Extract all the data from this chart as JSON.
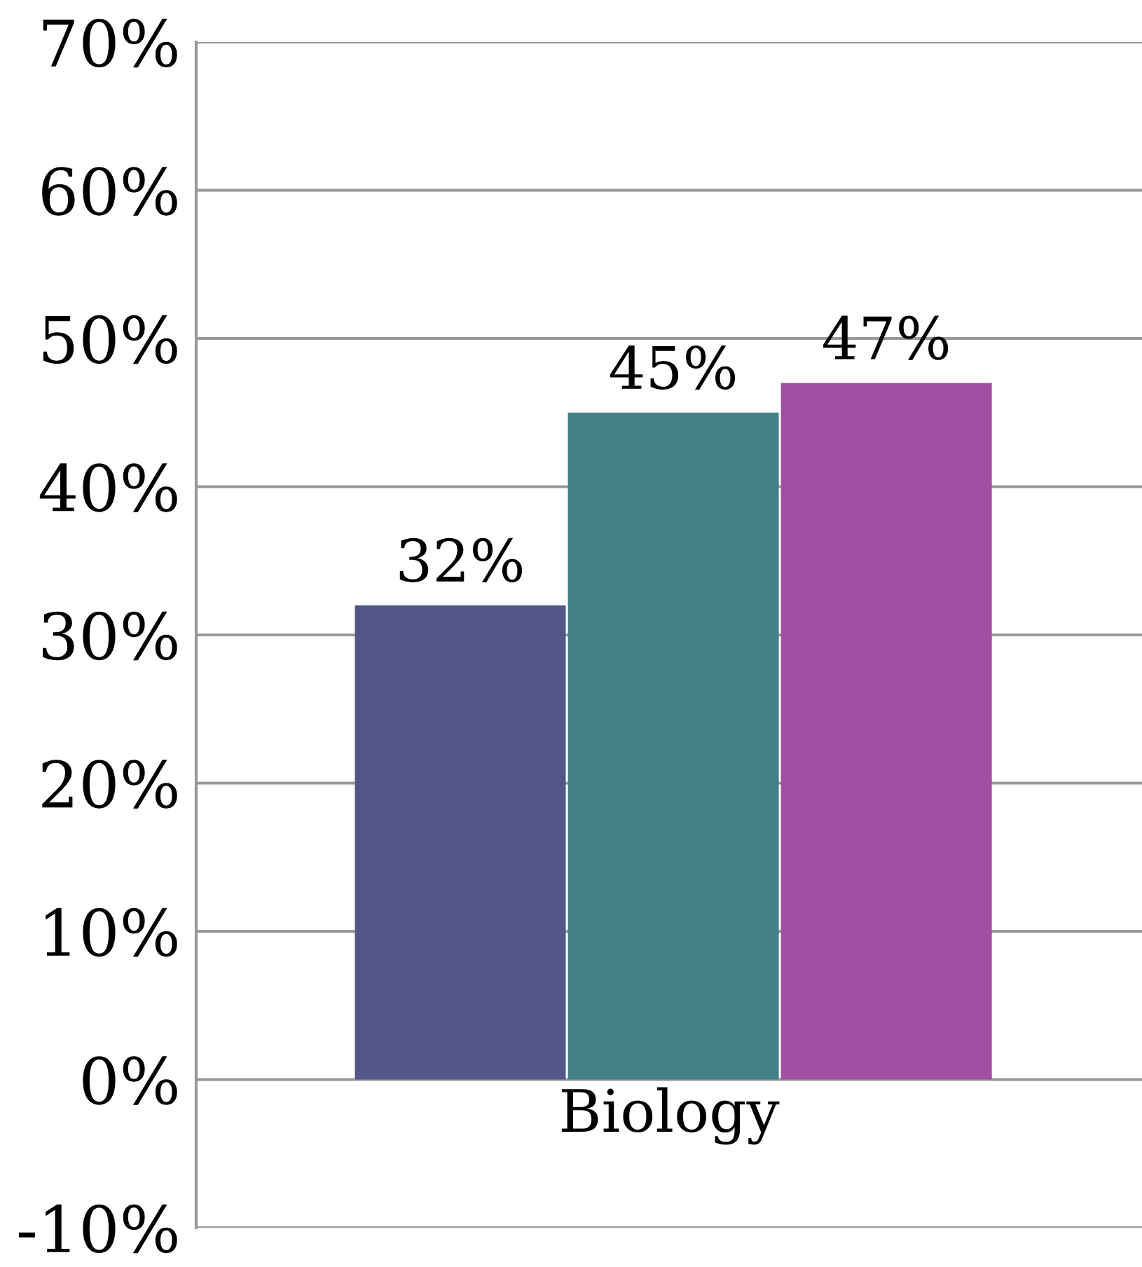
{
  "chart_data": {
    "type": "bar",
    "xlabel": "Biology",
    "categories": [
      null,
      null,
      null
    ],
    "values": [
      32,
      45,
      47
    ],
    "colors": [
      "#545689",
      "#438087",
      "#a04fa2"
    ],
    "value_labels": [
      "32%",
      "45%",
      "47%"
    ],
    "ylim": [
      -10,
      70
    ],
    "yticks": [
      {
        "value": -10,
        "label": "-10%"
      },
      {
        "value": 0,
        "label": "0%"
      },
      {
        "value": 10,
        "label": "10%"
      },
      {
        "value": 20,
        "label": "20%"
      },
      {
        "value": 30,
        "label": "30%"
      },
      {
        "value": 40,
        "label": "40%"
      },
      {
        "value": 50,
        "label": "50%"
      },
      {
        "value": 60,
        "label": "60%"
      },
      {
        "value": 70,
        "label": "70%"
      }
    ],
    "grid": "y",
    "legend": false
  }
}
